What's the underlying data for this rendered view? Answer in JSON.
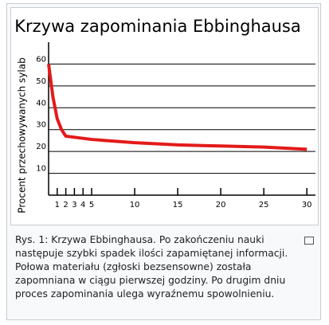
{
  "chart_data": {
    "type": "line",
    "title": "Krzywa zapominania Ebbinghausa",
    "y_label": "Procent przechowywanych sylab",
    "x": [
      0,
      0.5,
      1,
      1.5,
      2,
      3,
      5,
      10,
      15,
      20,
      25,
      30
    ],
    "series": [
      {
        "name": "Krzywa zapominania",
        "color": "#e41a1a",
        "values": [
          60,
          45,
          35,
          30,
          27,
          26.5,
          25.5,
          24,
          23,
          22.5,
          22,
          21
        ]
      }
    ],
    "xlim": [
      0,
      31
    ],
    "xticks": [
      1,
      2,
      3,
      4,
      5,
      10,
      15,
      20,
      25,
      30
    ],
    "ylim": [
      0,
      70
    ],
    "yticks": [
      10,
      20,
      30,
      40,
      50,
      60
    ],
    "grid": true
  },
  "caption": "Rys. 1: Krzywa Ebbinghausa. Po zakończeniu nauki następuje szybki spadek ilości zapamiętanej informacji. Połowa materiału (zgłoski bezsensowne) została zapomniana w ciągu pierwszej godziny. Po drugim dniu proces zapominania ulega wyraźnemu spowolnieniu."
}
